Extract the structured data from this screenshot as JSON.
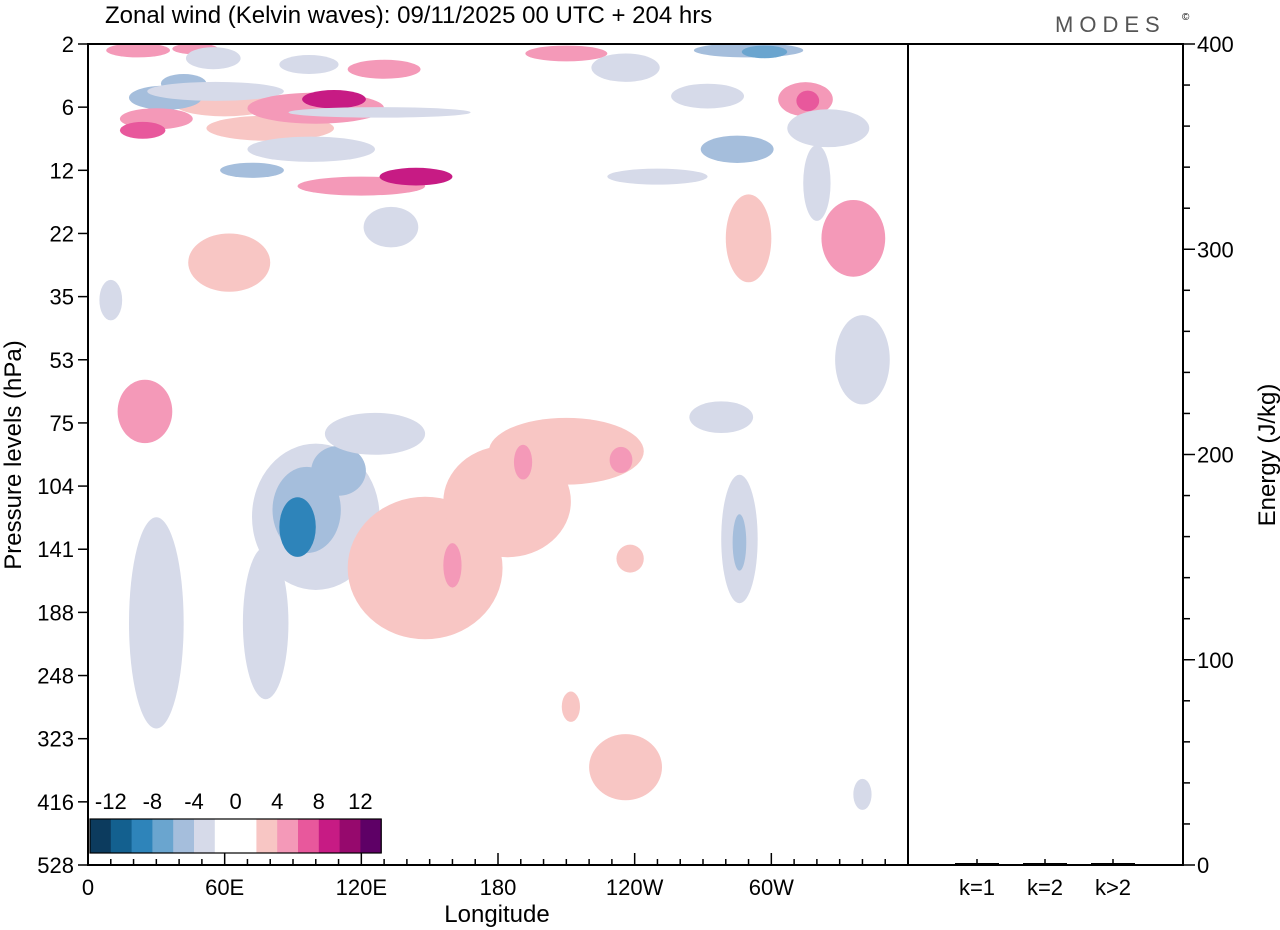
{
  "header": {
    "title": "Zonal wind (Kelvin waves):  09/11/2025  00 UTC  + 204 hrs",
    "brand": "MODES",
    "brand_mark": "©"
  },
  "chart_data": [
    {
      "type": "heatmap",
      "title": "Zonal wind (Kelvin waves)",
      "xlabel": "Longitude",
      "ylabel": "Pressure levels (hPa)",
      "x_tick_labels": [
        "0",
        "60E",
        "120E",
        "180",
        "120W",
        "60W"
      ],
      "y_tick_labels": [
        "2",
        "6",
        "12",
        "22",
        "35",
        "53",
        "75",
        "104",
        "141",
        "188",
        "248",
        "323",
        "416",
        "528"
      ],
      "colorbar": {
        "labels": [
          "-12",
          "-8",
          "-4",
          "0",
          "4",
          "8",
          "12"
        ],
        "colors": [
          "#0c3b5e",
          "#13608f",
          "#2e84ba",
          "#6aa5cf",
          "#a5bedc",
          "#d6dae9",
          "#ffffff",
          "#ffffff",
          "#f8c6c4",
          "#f499b8",
          "#e8589c",
          "#c71b84",
          "#96096d",
          "#5e0066"
        ]
      },
      "legend": "bottom-left",
      "blobs": [
        {
          "lon": 22,
          "lev": 2.4,
          "rx": 14,
          "ry": 0.5,
          "v": 5.5
        },
        {
          "lon": 47,
          "lev": 2.3,
          "rx": 10,
          "ry": 0.4,
          "v": 5.2
        },
        {
          "lon": 60,
          "lev": 5.8,
          "rx": 22,
          "ry": 0.9,
          "v": 3.5
        },
        {
          "lon": 55,
          "lev": 2.9,
          "rx": 12,
          "ry": 0.7,
          "v": -3
        },
        {
          "lon": 34,
          "lev": 5.4,
          "rx": 16,
          "ry": 0.8,
          "v": -4.5
        },
        {
          "lon": 42,
          "lev": 4.5,
          "rx": 10,
          "ry": 0.6,
          "v": -5
        },
        {
          "lon": 30,
          "lev": 7.1,
          "rx": 16,
          "ry": 1.0,
          "v": 5.5
        },
        {
          "lon": 24,
          "lev": 8.2,
          "rx": 10,
          "ry": 0.8,
          "v": 7.5
        },
        {
          "lon": 56,
          "lev": 5.0,
          "rx": 30,
          "ry": 0.6,
          "v": -3
        },
        {
          "lon": 97,
          "lev": 3.3,
          "rx": 13,
          "ry": 0.6,
          "v": -3
        },
        {
          "lon": 80,
          "lev": 8.0,
          "rx": 28,
          "ry": 1.2,
          "v": 3.5
        },
        {
          "lon": 100,
          "lev": 6.1,
          "rx": 30,
          "ry": 1.2,
          "v": 5
        },
        {
          "lon": 108,
          "lev": 5.5,
          "rx": 14,
          "ry": 0.6,
          "v": 8
        },
        {
          "lon": 130,
          "lev": 3.6,
          "rx": 16,
          "ry": 0.6,
          "v": 4.5
        },
        {
          "lon": 128,
          "lev": 6.5,
          "rx": 40,
          "ry": 0.5,
          "v": -3
        },
        {
          "lon": 98,
          "lev": 10.0,
          "rx": 28,
          "ry": 1.2,
          "v": -3
        },
        {
          "lon": 72,
          "lev": 12.0,
          "rx": 14,
          "ry": 0.9,
          "v": -4.5
        },
        {
          "lon": 120,
          "lev": 14.5,
          "rx": 28,
          "ry": 1.5,
          "v": 5
        },
        {
          "lon": 144,
          "lev": 13.0,
          "rx": 16,
          "ry": 1.3,
          "v": 8
        },
        {
          "lon": 133,
          "lev": 21.0,
          "rx": 12,
          "ry": 3.5,
          "v": -3
        },
        {
          "lon": 62,
          "lev": 28.0,
          "rx": 18,
          "ry": 6.0,
          "v": 3.5
        },
        {
          "lon": 25,
          "lev": 71.0,
          "rx": 12,
          "ry": 12.0,
          "v": 4
        },
        {
          "lon": 10,
          "lev": 36.0,
          "rx": 5,
          "ry": 5.0,
          "v": -3
        },
        {
          "lon": 210,
          "lev": 2.6,
          "rx": 18,
          "ry": 0.5,
          "v": 5
        },
        {
          "lon": 236,
          "lev": 3.5,
          "rx": 15,
          "ry": 0.9,
          "v": -3
        },
        {
          "lon": 290,
          "lev": 2.4,
          "rx": 24,
          "ry": 0.5,
          "v": -6
        },
        {
          "lon": 297,
          "lev": 2.5,
          "rx": 10,
          "ry": 0.4,
          "v": -8
        },
        {
          "lon": 272,
          "lev": 5.3,
          "rx": 16,
          "ry": 0.8,
          "v": -3
        },
        {
          "lon": 250,
          "lev": 13.0,
          "rx": 22,
          "ry": 1.2,
          "v": -3
        },
        {
          "lon": 285,
          "lev": 10.0,
          "rx": 16,
          "ry": 1.3,
          "v": -4.5
        },
        {
          "lon": 315,
          "lev": 5.5,
          "rx": 12,
          "ry": 1.2,
          "v": 4.5
        },
        {
          "lon": 316,
          "lev": 5.6,
          "rx": 5,
          "ry": 0.7,
          "v": 7
        },
        {
          "lon": 325,
          "lev": 8.0,
          "rx": 18,
          "ry": 1.8,
          "v": -3
        },
        {
          "lon": 290,
          "lev": 23.0,
          "rx": 10,
          "ry": 8.0,
          "v": 3.5
        },
        {
          "lon": 320,
          "lev": 14.0,
          "rx": 6,
          "ry": 5.0,
          "v": -3
        },
        {
          "lon": 336,
          "lev": 23.0,
          "rx": 14,
          "ry": 7.0,
          "v": 4
        },
        {
          "lon": 340,
          "lev": 53.0,
          "rx": 12,
          "ry": 14.0,
          "v": -3
        },
        {
          "lon": 100,
          "lev": 122.0,
          "rx": 28,
          "ry": 42.0,
          "v": -3
        },
        {
          "lon": 96,
          "lev": 118.0,
          "rx": 15,
          "ry": 24.0,
          "v": -6
        },
        {
          "lon": 92,
          "lev": 128.0,
          "rx": 8,
          "ry": 18.0,
          "v": -9
        },
        {
          "lon": 110,
          "lev": 97.0,
          "rx": 12,
          "ry": 12.0,
          "v": -5
        },
        {
          "lon": 126,
          "lev": 80.0,
          "rx": 22,
          "ry": 9.0,
          "v": -3
        },
        {
          "lon": 78,
          "lev": 198.0,
          "rx": 10,
          "ry": 65.0,
          "v": -3
        },
        {
          "lon": 30,
          "lev": 198.0,
          "rx": 12,
          "ry": 88.0,
          "v": -3
        },
        {
          "lon": 148,
          "lev": 155.0,
          "rx": 34,
          "ry": 50.0,
          "v": 3.5
        },
        {
          "lon": 184,
          "lev": 113.0,
          "rx": 28,
          "ry": 30.0,
          "v": 3.5
        },
        {
          "lon": 210,
          "lev": 88.0,
          "rx": 34,
          "ry": 15.0,
          "v": 3.5
        },
        {
          "lon": 160,
          "lev": 153.0,
          "rx": 4,
          "ry": 16.0,
          "v": 5.5
        },
        {
          "lon": 191,
          "lev": 93.0,
          "rx": 4,
          "ry": 8.0,
          "v": 5.5
        },
        {
          "lon": 234,
          "lev": 92.0,
          "rx": 5,
          "ry": 6.0,
          "v": 5.5
        },
        {
          "lon": 278,
          "lev": 73.0,
          "rx": 14,
          "ry": 6.0,
          "v": -3
        },
        {
          "lon": 286,
          "lev": 135.0,
          "rx": 8,
          "ry": 40.0,
          "v": -3
        },
        {
          "lon": 286,
          "lev": 137.0,
          "rx": 3,
          "ry": 18.0,
          "v": -5
        },
        {
          "lon": 238,
          "lev": 148.0,
          "rx": 6,
          "ry": 10.0,
          "v": 3.5
        },
        {
          "lon": 212,
          "lev": 285.0,
          "rx": 4,
          "ry": 18.0,
          "v": 3.5
        },
        {
          "lon": 236,
          "lev": 365.0,
          "rx": 16,
          "ry": 48.0,
          "v": 3.5
        },
        {
          "lon": 340,
          "lev": 405.0,
          "rx": 4,
          "ry": 24.0,
          "v": -3
        }
      ]
    },
    {
      "type": "bar",
      "ylabel": "Energy (J/kg)",
      "categories": [
        "k=1",
        "k=2",
        "k>2"
      ],
      "values": [
        0.4,
        0.3,
        0.3
      ],
      "ylim": [
        0,
        400
      ],
      "y_tick_labels": [
        "0",
        "100",
        "200",
        "300",
        "400"
      ]
    }
  ]
}
